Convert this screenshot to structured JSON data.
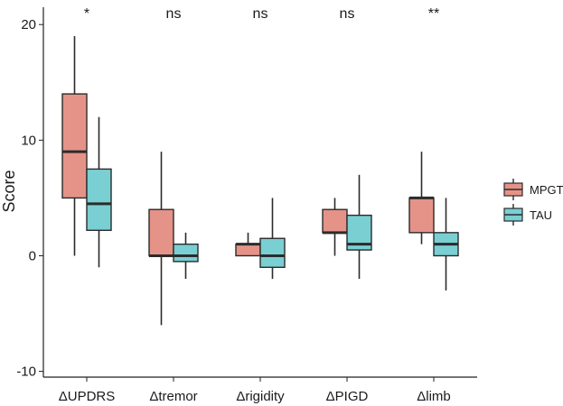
{
  "chart_data": {
    "type": "box",
    "ylabel": "Score",
    "xlabel": "",
    "ylim": [
      -10.5,
      21.5
    ],
    "yticks": [
      -10,
      0,
      10,
      20
    ],
    "categories": [
      "ΔUPDRS",
      "Δtremor",
      "Δrigidity",
      "ΔPIGD",
      "Δlimb"
    ],
    "significance": [
      "*",
      "ns",
      "ns",
      "ns",
      "**"
    ],
    "legend_position": "right",
    "series": [
      {
        "name": "MPGT",
        "color": "#E59388",
        "boxes": [
          {
            "min": 0,
            "q1": 5,
            "median": 9,
            "q3": 14,
            "max": 19
          },
          {
            "min": -6,
            "q1": 0,
            "median": 0,
            "q3": 4,
            "max": 9
          },
          {
            "min": 0,
            "q1": 0,
            "median": 1,
            "q3": 1,
            "max": 2
          },
          {
            "min": 0,
            "q1": 2,
            "median": 2,
            "q3": 4,
            "max": 5
          },
          {
            "min": 1,
            "q1": 2,
            "median": 5,
            "q3": 5,
            "max": 9
          }
        ]
      },
      {
        "name": "TAU",
        "color": "#7ACFD3",
        "boxes": [
          {
            "min": -1,
            "q1": 2.2,
            "median": 4.5,
            "q3": 7.5,
            "max": 12
          },
          {
            "min": -2,
            "q1": -0.5,
            "median": 0,
            "q3": 1,
            "max": 2
          },
          {
            "min": -2,
            "q1": -1,
            "median": 0,
            "q3": 1.5,
            "max": 5
          },
          {
            "min": -2,
            "q1": 0.5,
            "median": 1,
            "q3": 3.5,
            "max": 7
          },
          {
            "min": -3,
            "q1": 0,
            "median": 1,
            "q3": 2,
            "max": 5
          }
        ]
      }
    ]
  }
}
